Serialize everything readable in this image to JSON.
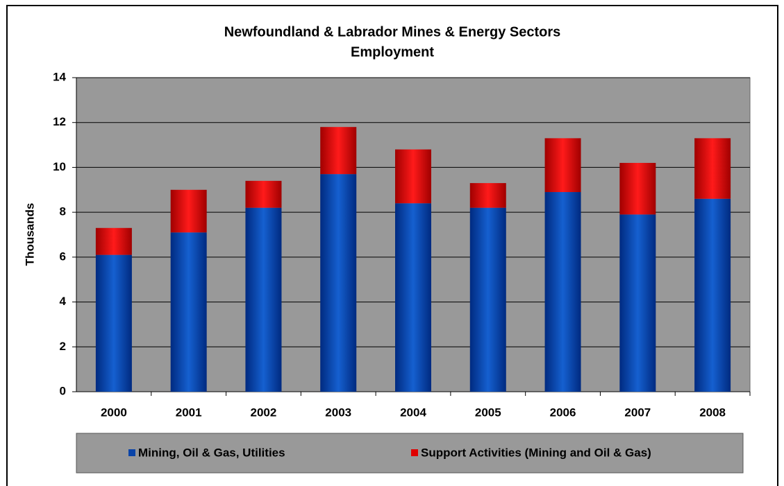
{
  "chart_data": {
    "type": "stacked_bar",
    "title": "Newfoundland & Labrador Mines & Energy Sectors",
    "subtitle": "Employment",
    "y_label": "Thousands",
    "categories": [
      "2000",
      "2001",
      "2002",
      "2003",
      "2004",
      "2005",
      "2006",
      "2007",
      "2008"
    ],
    "series": [
      {
        "name": "Mining, Oil & Gas, Utilities",
        "color": "#0a44a8",
        "values": [
          6.1,
          7.1,
          8.2,
          9.7,
          8.4,
          8.2,
          8.9,
          7.9,
          8.6
        ]
      },
      {
        "name": "Support Activities (Mining and Oil & Gas)",
        "color": "#e00000",
        "values": [
          1.2,
          1.9,
          1.2,
          2.1,
          2.4,
          1.1,
          2.4,
          2.3,
          2.7
        ]
      }
    ],
    "ylim": [
      0,
      14
    ],
    "yticks": [
      0,
      2,
      4,
      6,
      8,
      10,
      12,
      14
    ],
    "grid": true,
    "legend": "bottom"
  }
}
